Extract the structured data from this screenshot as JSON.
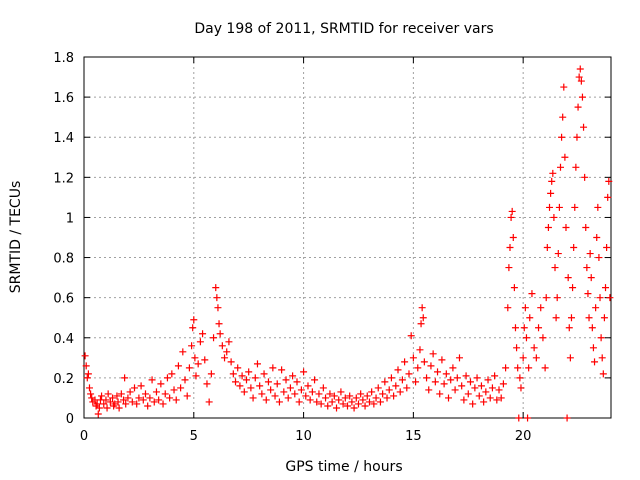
{
  "chart_data": {
    "type": "scatter",
    "title": "Day 198 of 2011, SRMTID for receiver vars",
    "xlabel": "GPS time / hours",
    "ylabel": "SRMTID / TECUs",
    "xlim": [
      0,
      24
    ],
    "ylim": [
      0,
      1.8
    ],
    "x_ticks": [
      0,
      5,
      10,
      15,
      20
    ],
    "x_tick_labels": [
      "0",
      "5",
      "10",
      "15",
      "20"
    ],
    "y_ticks": [
      0,
      0.2,
      0.4,
      0.6,
      0.8,
      1,
      1.2,
      1.4,
      1.6,
      1.8
    ],
    "y_tick_labels": [
      "0",
      "0.2",
      "0.4",
      "0.6",
      "0.8",
      "1",
      "1.2",
      "1.4",
      "1.6",
      "1.8"
    ],
    "grid": true,
    "marker": "+",
    "color": "#ff0000",
    "series": [
      {
        "name": "SRMTID",
        "points": [
          [
            0.05,
            0.31
          ],
          [
            0.1,
            0.26
          ],
          [
            0.15,
            0.2
          ],
          [
            0.2,
            0.22
          ],
          [
            0.25,
            0.15
          ],
          [
            0.3,
            0.12
          ],
          [
            0.35,
            0.1
          ],
          [
            0.4,
            0.08
          ],
          [
            0.5,
            0.09
          ],
          [
            0.55,
            0.06
          ],
          [
            0.6,
            0.07
          ],
          [
            0.65,
            0.02
          ],
          [
            0.7,
            0.05
          ],
          [
            0.75,
            0.09
          ],
          [
            0.8,
            0.11
          ],
          [
            0.9,
            0.07
          ],
          [
            1.0,
            0.09
          ],
          [
            1.05,
            0.05
          ],
          [
            1.1,
            0.12
          ],
          [
            1.2,
            0.08
          ],
          [
            1.3,
            0.1
          ],
          [
            1.35,
            0.06
          ],
          [
            1.4,
            0.07
          ],
          [
            1.5,
            0.11
          ],
          [
            1.55,
            0.08
          ],
          [
            1.6,
            0.05
          ],
          [
            1.7,
            0.12
          ],
          [
            1.8,
            0.09
          ],
          [
            1.85,
            0.2
          ],
          [
            1.9,
            0.07
          ],
          [
            2.0,
            0.1
          ],
          [
            2.1,
            0.13
          ],
          [
            2.2,
            0.08
          ],
          [
            2.3,
            0.15
          ],
          [
            2.4,
            0.07
          ],
          [
            2.5,
            0.1
          ],
          [
            2.6,
            0.16
          ],
          [
            2.7,
            0.09
          ],
          [
            2.8,
            0.12
          ],
          [
            2.9,
            0.06
          ],
          [
            3.0,
            0.1
          ],
          [
            3.1,
            0.19
          ],
          [
            3.2,
            0.08
          ],
          [
            3.3,
            0.13
          ],
          [
            3.4,
            0.09
          ],
          [
            3.5,
            0.17
          ],
          [
            3.6,
            0.07
          ],
          [
            3.7,
            0.12
          ],
          [
            3.8,
            0.2
          ],
          [
            3.9,
            0.1
          ],
          [
            4.0,
            0.22
          ],
          [
            4.1,
            0.14
          ],
          [
            4.2,
            0.09
          ],
          [
            4.3,
            0.26
          ],
          [
            4.4,
            0.15
          ],
          [
            4.5,
            0.33
          ],
          [
            4.6,
            0.19
          ],
          [
            4.7,
            0.11
          ],
          [
            4.8,
            0.25
          ],
          [
            4.9,
            0.36
          ],
          [
            4.95,
            0.45
          ],
          [
            5.0,
            0.49
          ],
          [
            5.05,
            0.3
          ],
          [
            5.1,
            0.21
          ],
          [
            5.2,
            0.27
          ],
          [
            5.3,
            0.38
          ],
          [
            5.4,
            0.42
          ],
          [
            5.5,
            0.29
          ],
          [
            5.6,
            0.17
          ],
          [
            5.7,
            0.08
          ],
          [
            5.8,
            0.22
          ],
          [
            5.9,
            0.4
          ],
          [
            6.0,
            0.65
          ],
          [
            6.05,
            0.6
          ],
          [
            6.1,
            0.55
          ],
          [
            6.15,
            0.47
          ],
          [
            6.2,
            0.42
          ],
          [
            6.3,
            0.36
          ],
          [
            6.4,
            0.3
          ],
          [
            6.5,
            0.33
          ],
          [
            6.6,
            0.38
          ],
          [
            6.7,
            0.28
          ],
          [
            6.8,
            0.22
          ],
          [
            6.9,
            0.18
          ],
          [
            7.0,
            0.25
          ],
          [
            7.1,
            0.16
          ],
          [
            7.2,
            0.21
          ],
          [
            7.3,
            0.13
          ],
          [
            7.4,
            0.19
          ],
          [
            7.5,
            0.23
          ],
          [
            7.6,
            0.15
          ],
          [
            7.7,
            0.1
          ],
          [
            7.8,
            0.2
          ],
          [
            7.9,
            0.27
          ],
          [
            8.0,
            0.16
          ],
          [
            8.1,
            0.12
          ],
          [
            8.2,
            0.22
          ],
          [
            8.3,
            0.09
          ],
          [
            8.4,
            0.18
          ],
          [
            8.5,
            0.14
          ],
          [
            8.6,
            0.25
          ],
          [
            8.7,
            0.11
          ],
          [
            8.8,
            0.17
          ],
          [
            8.9,
            0.08
          ],
          [
            9.0,
            0.24
          ],
          [
            9.1,
            0.13
          ],
          [
            9.2,
            0.19
          ],
          [
            9.3,
            0.1
          ],
          [
            9.4,
            0.15
          ],
          [
            9.5,
            0.21
          ],
          [
            9.6,
            0.12
          ],
          [
            9.7,
            0.18
          ],
          [
            9.8,
            0.08
          ],
          [
            9.9,
            0.14
          ],
          [
            10.0,
            0.23
          ],
          [
            10.1,
            0.11
          ],
          [
            10.2,
            0.16
          ],
          [
            10.3,
            0.09
          ],
          [
            10.4,
            0.13
          ],
          [
            10.5,
            0.19
          ],
          [
            10.6,
            0.08
          ],
          [
            10.7,
            0.12
          ],
          [
            10.8,
            0.07
          ],
          [
            10.9,
            0.15
          ],
          [
            11.0,
            0.1
          ],
          [
            11.1,
            0.06
          ],
          [
            11.2,
            0.12
          ],
          [
            11.3,
            0.08
          ],
          [
            11.4,
            0.11
          ],
          [
            11.5,
            0.05
          ],
          [
            11.6,
            0.09
          ],
          [
            11.7,
            0.13
          ],
          [
            11.8,
            0.07
          ],
          [
            11.9,
            0.1
          ],
          [
            12.0,
            0.06
          ],
          [
            12.1,
            0.11
          ],
          [
            12.2,
            0.08
          ],
          [
            12.3,
            0.05
          ],
          [
            12.4,
            0.1
          ],
          [
            12.5,
            0.07
          ],
          [
            12.6,
            0.12
          ],
          [
            12.7,
            0.09
          ],
          [
            12.8,
            0.06
          ],
          [
            12.9,
            0.11
          ],
          [
            13.0,
            0.08
          ],
          [
            13.1,
            0.13
          ],
          [
            13.2,
            0.07
          ],
          [
            13.3,
            0.1
          ],
          [
            13.4,
            0.15
          ],
          [
            13.5,
            0.08
          ],
          [
            13.6,
            0.12
          ],
          [
            13.7,
            0.18
          ],
          [
            13.8,
            0.1
          ],
          [
            13.9,
            0.14
          ],
          [
            14.0,
            0.2
          ],
          [
            14.1,
            0.11
          ],
          [
            14.2,
            0.16
          ],
          [
            14.3,
            0.24
          ],
          [
            14.4,
            0.13
          ],
          [
            14.5,
            0.19
          ],
          [
            14.6,
            0.28
          ],
          [
            14.7,
            0.15
          ],
          [
            14.8,
            0.22
          ],
          [
            14.9,
            0.41
          ],
          [
            15.0,
            0.3
          ],
          [
            15.1,
            0.18
          ],
          [
            15.2,
            0.25
          ],
          [
            15.3,
            0.34
          ],
          [
            15.35,
            0.47
          ],
          [
            15.4,
            0.55
          ],
          [
            15.45,
            0.5
          ],
          [
            15.5,
            0.28
          ],
          [
            15.6,
            0.2
          ],
          [
            15.7,
            0.14
          ],
          [
            15.8,
            0.26
          ],
          [
            15.9,
            0.32
          ],
          [
            16.0,
            0.18
          ],
          [
            16.1,
            0.23
          ],
          [
            16.2,
            0.12
          ],
          [
            16.3,
            0.29
          ],
          [
            16.4,
            0.17
          ],
          [
            16.5,
            0.22
          ],
          [
            16.6,
            0.1
          ],
          [
            16.7,
            0.19
          ],
          [
            16.8,
            0.25
          ],
          [
            16.9,
            0.14
          ],
          [
            17.0,
            0.2
          ],
          [
            17.1,
            0.3
          ],
          [
            17.2,
            0.16
          ],
          [
            17.3,
            0.09
          ],
          [
            17.4,
            0.21
          ],
          [
            17.5,
            0.12
          ],
          [
            17.6,
            0.18
          ],
          [
            17.7,
            0.07
          ],
          [
            17.8,
            0.15
          ],
          [
            17.9,
            0.2
          ],
          [
            18.0,
            0.11
          ],
          [
            18.1,
            0.16
          ],
          [
            18.2,
            0.08
          ],
          [
            18.3,
            0.13
          ],
          [
            18.4,
            0.19
          ],
          [
            18.5,
            0.1
          ],
          [
            18.6,
            0.15
          ],
          [
            18.7,
            0.21
          ],
          [
            18.8,
            0.09
          ],
          [
            18.9,
            0.14
          ],
          [
            19.0,
            0.1
          ],
          [
            19.1,
            0.17
          ],
          [
            19.2,
            0.25
          ],
          [
            19.3,
            0.55
          ],
          [
            19.35,
            0.75
          ],
          [
            19.4,
            0.85
          ],
          [
            19.45,
            1.0
          ],
          [
            19.5,
            1.03
          ],
          [
            19.55,
            0.9
          ],
          [
            19.6,
            0.65
          ],
          [
            19.65,
            0.45
          ],
          [
            19.7,
            0.35
          ],
          [
            19.75,
            0.25
          ],
          [
            19.8,
            0.0
          ],
          [
            19.85,
            0.2
          ],
          [
            19.9,
            0.15
          ],
          [
            20.0,
            0.3
          ],
          [
            20.05,
            0.45
          ],
          [
            20.1,
            0.55
          ],
          [
            20.15,
            0.4
          ],
          [
            20.2,
            0.0
          ],
          [
            20.25,
            0.25
          ],
          [
            20.3,
            0.5
          ],
          [
            20.4,
            0.62
          ],
          [
            20.5,
            0.35
          ],
          [
            20.6,
            0.3
          ],
          [
            20.7,
            0.45
          ],
          [
            20.8,
            0.55
          ],
          [
            20.9,
            0.4
          ],
          [
            21.0,
            0.25
          ],
          [
            21.05,
            0.6
          ],
          [
            21.1,
            0.85
          ],
          [
            21.15,
            0.95
          ],
          [
            21.2,
            1.05
          ],
          [
            21.25,
            1.12
          ],
          [
            21.3,
            1.18
          ],
          [
            21.35,
            1.22
          ],
          [
            21.4,
            1.0
          ],
          [
            21.45,
            0.75
          ],
          [
            21.5,
            0.5
          ],
          [
            21.55,
            0.6
          ],
          [
            21.6,
            0.82
          ],
          [
            21.65,
            1.05
          ],
          [
            21.7,
            1.25
          ],
          [
            21.75,
            1.4
          ],
          [
            21.8,
            1.5
          ],
          [
            21.85,
            1.65
          ],
          [
            21.9,
            1.3
          ],
          [
            21.95,
            0.95
          ],
          [
            22.0,
            0.0
          ],
          [
            22.05,
            0.7
          ],
          [
            22.1,
            0.45
          ],
          [
            22.15,
            0.3
          ],
          [
            22.2,
            0.5
          ],
          [
            22.25,
            0.65
          ],
          [
            22.3,
            0.85
          ],
          [
            22.35,
            1.05
          ],
          [
            22.4,
            1.25
          ],
          [
            22.45,
            1.4
          ],
          [
            22.5,
            1.55
          ],
          [
            22.55,
            1.7
          ],
          [
            22.6,
            1.74
          ],
          [
            22.65,
            1.68
          ],
          [
            22.7,
            1.6
          ],
          [
            22.75,
            1.45
          ],
          [
            22.8,
            1.2
          ],
          [
            22.85,
            0.95
          ],
          [
            22.9,
            0.75
          ],
          [
            22.95,
            0.62
          ],
          [
            23.0,
            0.5
          ],
          [
            23.05,
            0.82
          ],
          [
            23.1,
            0.7
          ],
          [
            23.15,
            0.45
          ],
          [
            23.2,
            0.35
          ],
          [
            23.25,
            0.28
          ],
          [
            23.3,
            0.55
          ],
          [
            23.35,
            0.9
          ],
          [
            23.4,
            1.05
          ],
          [
            23.45,
            0.8
          ],
          [
            23.5,
            0.6
          ],
          [
            23.55,
            0.4
          ],
          [
            23.6,
            0.3
          ],
          [
            23.65,
            0.22
          ],
          [
            23.7,
            0.5
          ],
          [
            23.75,
            0.65
          ],
          [
            23.8,
            0.85
          ],
          [
            23.85,
            1.1
          ],
          [
            23.9,
            1.18
          ],
          [
            23.95,
            0.6
          ]
        ]
      }
    ]
  }
}
